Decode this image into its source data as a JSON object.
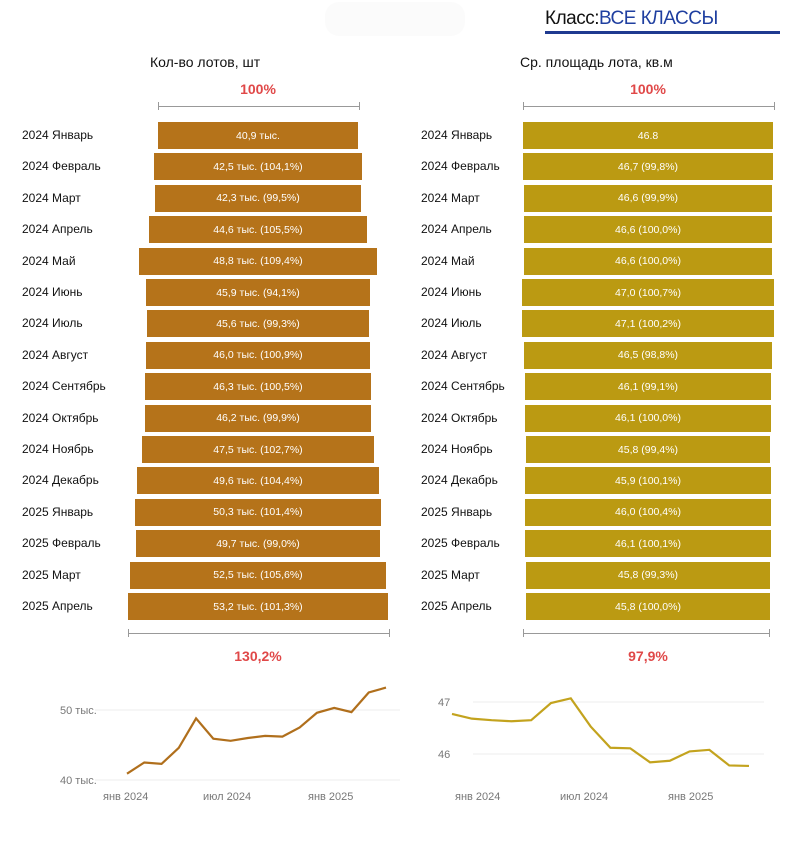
{
  "header": {
    "class_label": "Класс:",
    "class_value": "ВСЕ КЛАССЫ"
  },
  "colors": {
    "left": "#b5731a",
    "right": "#bb9a12",
    "left_line": "#b06f1c",
    "right_line": "#c3a31e",
    "pct": "#e04848",
    "accent": "#1f3a90"
  },
  "chart_data": [
    {
      "type": "bar",
      "title": "Кол-во лотов, шт",
      "top_label": "100%",
      "bottom_label": "130,2%",
      "categories": [
        "2024 Январь",
        "2024 Февраль",
        "2024 Март",
        "2024 Апрель",
        "2024 Май",
        "2024 Июнь",
        "2024 Июль",
        "2024 Август",
        "2024 Сентябрь",
        "2024 Октябрь",
        "2024 Ноябрь",
        "2024 Декабрь",
        "2025 Январь",
        "2025 Февраль",
        "2025 Март",
        "2025 Апрель"
      ],
      "values": [
        40.9,
        42.5,
        42.3,
        44.6,
        48.8,
        45.9,
        45.6,
        46.0,
        46.3,
        46.2,
        47.5,
        49.6,
        50.3,
        49.7,
        52.5,
        53.2
      ],
      "labels": [
        "40,9 тыс.",
        "42,5 тыс. (104,1%)",
        "42,3 тыс. (99,5%)",
        "44,6 тыс. (105,5%)",
        "48,8 тыс. (109,4%)",
        "45,9 тыс. (94,1%)",
        "45,6 тыс. (99,3%)",
        "46,0 тыс. (100,9%)",
        "46,3 тыс. (100,5%)",
        "46,2 тыс. (99,9%)",
        "47,5 тыс. (102,7%)",
        "49,6 тыс. (104,4%)",
        "50,3 тыс. (101,4%)",
        "49,7 тыс. (99,0%)",
        "52,5 тыс. (105,6%)",
        "53,2 тыс. (101,3%)"
      ]
    },
    {
      "type": "bar",
      "title": "Ср. площадь лота, кв.м",
      "top_label": "100%",
      "bottom_label": "97,9%",
      "categories": [
        "2024 Январь",
        "2024 Февраль",
        "2024 Март",
        "2024 Апрель",
        "2024 Май",
        "2024 Июнь",
        "2024 Июль",
        "2024 Август",
        "2024 Сентябрь",
        "2024 Октябрь",
        "2024 Ноябрь",
        "2024 Декабрь",
        "2025 Январь",
        "2025 Февраль",
        "2025 Март",
        "2025 Апрель"
      ],
      "values": [
        46.8,
        46.7,
        46.6,
        46.6,
        46.6,
        47.0,
        47.1,
        46.5,
        46.1,
        46.1,
        45.8,
        45.9,
        46.0,
        46.1,
        45.8,
        45.8
      ],
      "labels": [
        "46.8",
        "46,7 (99,8%)",
        "46,6 (99,9%)",
        "46,6 (100,0%)",
        "46,6 (100,0%)",
        "47,0 (100,7%)",
        "47,1 (100,2%)",
        "46,5 (98,8%)",
        "46,1 (99,1%)",
        "46,1 (100,0%)",
        "45,8 (99,4%)",
        "45,9 (100,1%)",
        "46,0 (100,4%)",
        "46,1 (100,1%)",
        "45,8 (99,3%)",
        "45,8 (100,0%)"
      ]
    },
    {
      "type": "line",
      "x_ticks": [
        "янв 2024",
        "июл 2024",
        "янв 2025"
      ],
      "y_ticks": [
        "40 тыс.",
        "50 тыс."
      ],
      "y_tick_values": [
        40,
        50
      ],
      "values": [
        40.9,
        42.5,
        42.3,
        44.6,
        48.8,
        45.9,
        45.6,
        46.0,
        46.3,
        46.2,
        47.5,
        49.6,
        50.3,
        49.7,
        52.5,
        53.2
      ]
    },
    {
      "type": "line",
      "x_ticks": [
        "янв 2024",
        "июл 2024",
        "янв 2025"
      ],
      "y_ticks": [
        "46",
        "47"
      ],
      "y_tick_values": [
        46,
        47
      ],
      "values": [
        46.77,
        46.68,
        46.65,
        46.63,
        46.65,
        46.98,
        47.07,
        46.53,
        46.12,
        46.11,
        45.84,
        45.87,
        46.05,
        46.08,
        45.78,
        45.77
      ]
    }
  ]
}
